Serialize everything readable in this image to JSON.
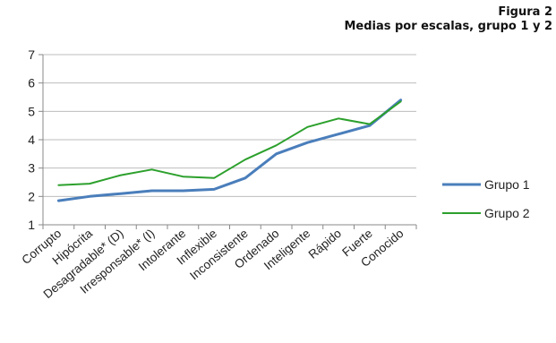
{
  "figure": {
    "number": "Figura 2",
    "title": "Medias por escalas, grupo 1 y 2"
  },
  "chart_data": {
    "type": "line",
    "title": "Medias por escalas, grupo 1 y 2",
    "xlabel": "",
    "ylabel": "",
    "ylim": [
      1,
      7
    ],
    "yticks": [
      1,
      2,
      3,
      4,
      5,
      6,
      7
    ],
    "grid": true,
    "legend_position": "right",
    "categories": [
      "Corrupto",
      "Hipócrita",
      "Desagradable* (D)",
      "Irresponsable* (I)",
      "Intolerante",
      "Inflexible",
      "Inconsistente",
      "Ordenado",
      "Inteligente",
      "Rápido",
      "Fuerte",
      "Conocido"
    ],
    "series": [
      {
        "name": "Grupo 1",
        "color": "#4a7ebb",
        "values": [
          1.85,
          2.0,
          2.1,
          2.2,
          2.2,
          2.25,
          2.65,
          3.5,
          3.9,
          4.2,
          4.5,
          5.4
        ]
      },
      {
        "name": "Grupo  2",
        "color": "#2ca02c",
        "values": [
          2.4,
          2.45,
          2.75,
          2.95,
          2.7,
          2.65,
          3.3,
          3.8,
          4.45,
          4.75,
          4.55,
          5.35
        ]
      }
    ]
  }
}
